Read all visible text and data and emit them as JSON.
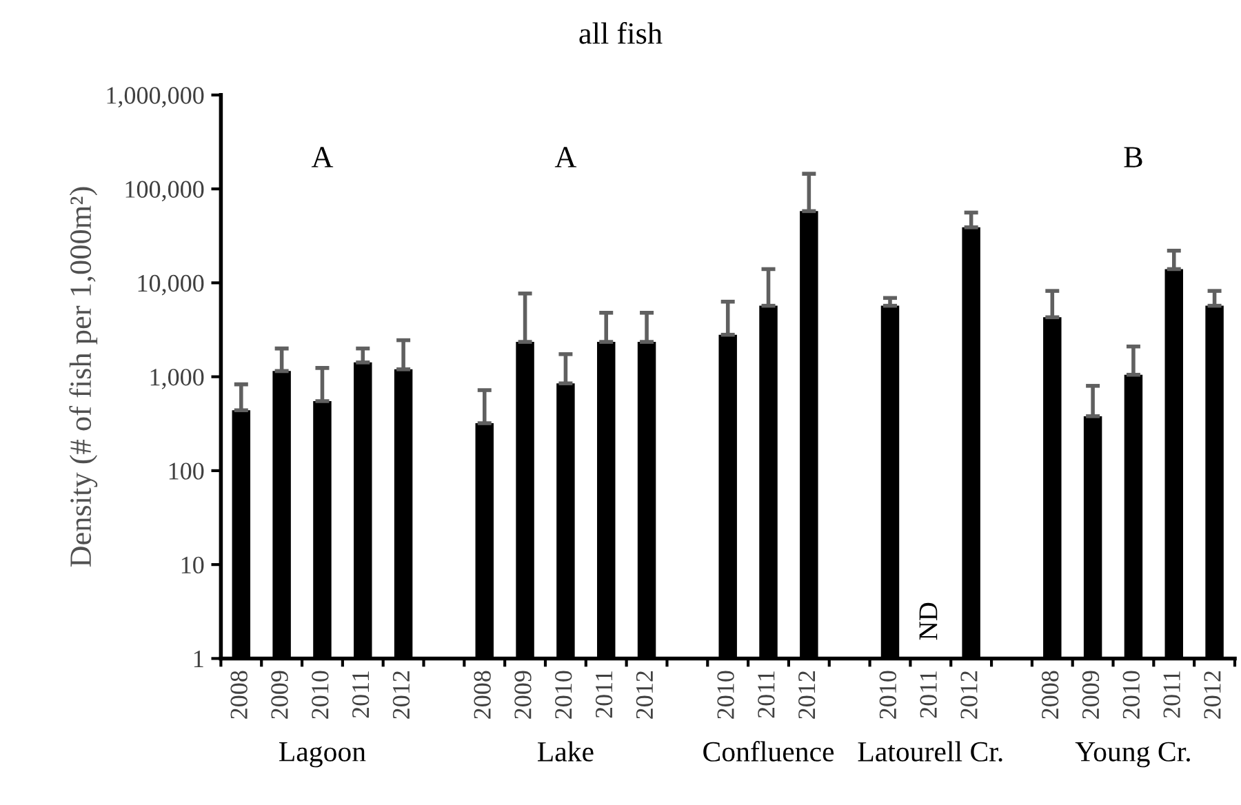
{
  "chart_data": {
    "type": "bar",
    "title": "all fish",
    "ylabel": "Density (# of fish per 1,000m²)",
    "categories": [
      "2008",
      "2009",
      "2010",
      "2011",
      "2012",
      null,
      "2008",
      "2009",
      "2010",
      "2011",
      "2012",
      null,
      "2010",
      "2011",
      "2012",
      null,
      "2010",
      "2011",
      "2012",
      null,
      "2008",
      "2009",
      "2010",
      "2011",
      "2012"
    ],
    "values": [
      440,
      1150,
      550,
      1420,
      1200,
      null,
      320,
      2350,
      850,
      2350,
      2350,
      null,
      2800,
      5700,
      58000,
      null,
      5700,
      null,
      39000,
      null,
      4300,
      380,
      1050,
      14000,
      5700
    ],
    "errors": [
      [
        440,
        830
      ],
      [
        1150,
        2000
      ],
      [
        550,
        1240
      ],
      [
        1420,
        2000
      ],
      [
        1200,
        2450
      ],
      null,
      [
        320,
        720
      ],
      [
        2350,
        7700
      ],
      [
        850,
        1740
      ],
      [
        2350,
        4800
      ],
      [
        2350,
        4800
      ],
      null,
      [
        2800,
        6300
      ],
      [
        5700,
        14000
      ],
      [
        58000,
        145000
      ],
      null,
      [
        5700,
        6900
      ],
      null,
      [
        39000,
        56000
      ],
      null,
      [
        4300,
        8200
      ],
      [
        380,
        800
      ],
      [
        1050,
        2100
      ],
      [
        14000,
        22000
      ],
      [
        5700,
        8200
      ]
    ],
    "color": "#000000",
    "log": true,
    "ylim": [
      1,
      1000000
    ],
    "yticks": [
      {
        "value": 1,
        "label": "1"
      },
      {
        "value": 10,
        "label": "10"
      },
      {
        "value": 100,
        "label": "100"
      },
      {
        "value": 1000,
        "label": "1,000"
      },
      {
        "value": 10000,
        "label": "10,000"
      },
      {
        "value": 100000,
        "label": "100,000"
      },
      {
        "value": 1000000,
        "label": "1,000,000"
      }
    ],
    "grid": false,
    "legend": false,
    "annotations": [
      "Lagoon",
      "Lake",
      "Confluence",
      "Latourell Cr.",
      "Young Cr.",
      "A",
      "A",
      "B",
      "ND"
    ]
  }
}
